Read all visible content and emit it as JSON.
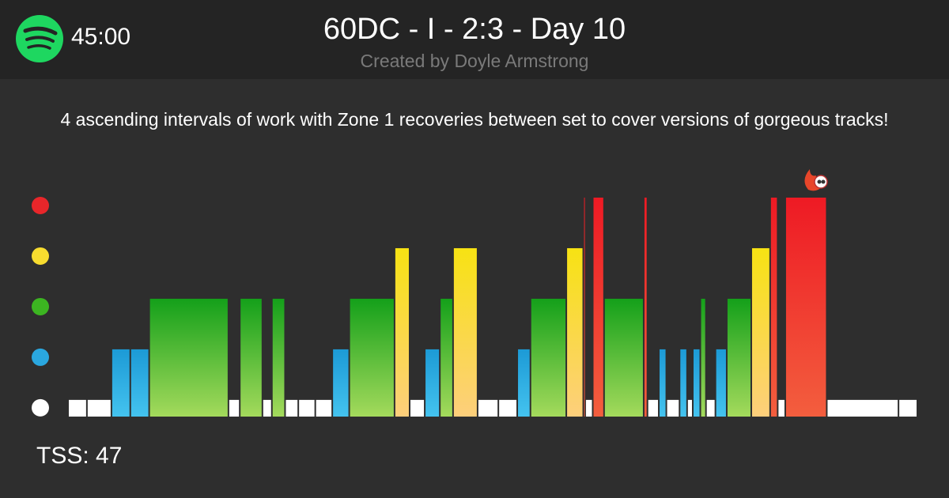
{
  "header": {
    "duration": "45:00",
    "title": "60DC - I - 2:3 - Day 10",
    "subtitle": "Created by Doyle Armstrong"
  },
  "description": "4 ascending intervals of work with Zone 1 recoveries between set to cover versions of gorgeous tracks!",
  "tss": "TSS: 47",
  "chart_data": {
    "type": "histogram",
    "bins": [
      0,
      1.0,
      2.3,
      3.3,
      4.3,
      8.5,
      9.1,
      10.3,
      10.8,
      11.5,
      12.2,
      13.1,
      14.0,
      14.9,
      17.3,
      18.1,
      18.9,
      19.7,
      20.4,
      21.7,
      22.8,
      23.8,
      24.5,
      26.4,
      27.3,
      27.4,
      27.8,
      28.4,
      30.5,
      30.7,
      31.3,
      31.7,
      32.4,
      32.8,
      33.1,
      33.5,
      33.8,
      34.3,
      34.9,
      36.2,
      37.2,
      37.6,
      38.0,
      40.2,
      44.0,
      45
    ],
    "values": [
      1,
      1,
      2,
      2,
      3,
      1,
      3,
      1,
      3,
      1,
      1,
      1,
      2,
      3,
      4,
      1,
      2,
      3,
      4,
      1,
      1,
      2,
      3,
      4,
      5,
      1,
      5,
      3,
      5,
      1,
      2,
      1,
      2,
      1,
      2,
      3,
      1,
      2,
      3,
      4,
      5,
      1,
      5,
      1,
      1
    ],
    "xlim": [
      0,
      45
    ],
    "ylim": [
      0.67,
      5
    ],
    "yticks": [
      1,
      2,
      3,
      4,
      5
    ],
    "zone_colors": [
      "#ffffff",
      "#2aa7df",
      "#3cb521",
      "#f7dc2f",
      "#e8262a"
    ]
  }
}
